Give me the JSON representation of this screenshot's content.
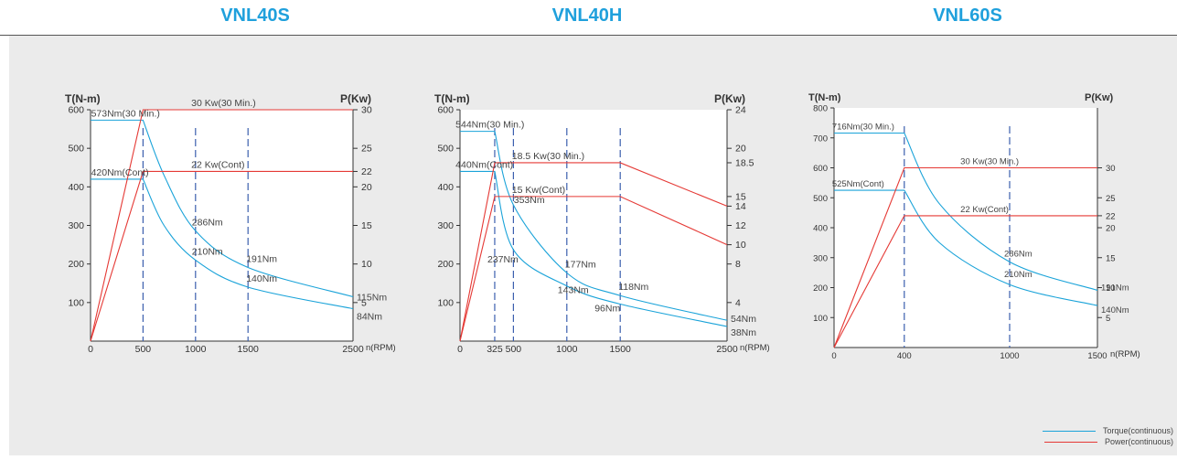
{
  "colors": {
    "torque": "#1aa3d9",
    "power": "#e53935",
    "title": "#1fa0dc"
  },
  "legend": {
    "torque_label": "Torque(continuous)",
    "power_label": "Power(continuous)"
  },
  "chart_data": [
    {
      "type": "line",
      "title": "VNL40S",
      "ylabel_left": "T(N-m)",
      "ylabel_right": "P(Kw)",
      "xlabel": "n(RPM)",
      "xlim": [
        0,
        2500
      ],
      "ylim_left": [
        0,
        600
      ],
      "ylim_right": [
        0,
        30
      ],
      "x_ticks": [
        "0",
        "500",
        "1000",
        "1500",
        "2500"
      ],
      "x_tick_values": [
        0,
        500,
        1000,
        1500,
        2500
      ],
      "y_left_ticks": [
        100,
        200,
        300,
        400,
        500,
        600
      ],
      "y_right_ticks": [
        {
          "value": 5,
          "label": "5"
        },
        {
          "value": 10,
          "label": "10"
        },
        {
          "value": 15,
          "label": "15"
        },
        {
          "value": 20,
          "label": "20"
        },
        {
          "value": 22,
          "label": "22"
        },
        {
          "value": 25,
          "label": "25"
        },
        {
          "value": 30,
          "label": "30"
        }
      ],
      "series": [
        {
          "kind": "torque",
          "x": [
            0,
            500,
            700,
            1000,
            1500,
            2500
          ],
          "y": [
            573,
            573,
            430,
            286,
            191,
            115
          ]
        },
        {
          "kind": "torque",
          "x": [
            0,
            500,
            700,
            1000,
            1500,
            2500
          ],
          "y": [
            420,
            420,
            300,
            210,
            140,
            84
          ]
        },
        {
          "kind": "power",
          "x": [
            0,
            500,
            2500
          ],
          "y": [
            0,
            30,
            30
          ]
        },
        {
          "kind": "power",
          "x": [
            0,
            500,
            2500
          ],
          "y": [
            0,
            22,
            22
          ]
        }
      ],
      "vlines": [
        500,
        1000,
        1500
      ],
      "annotations": [
        {
          "text": "573Nm(30 Min.)",
          "x": 40,
          "y": 573
        },
        {
          "text": "420Nm(Cont)",
          "x": 40,
          "y": 420
        },
        {
          "text": "30 Kw(30 Min.)",
          "x": 1700,
          "y": 600
        },
        {
          "text": "22 Kw(Cont)",
          "x": 1700,
          "y": 440
        },
        {
          "text": "286Nm",
          "x": 1000,
          "y": 286
        },
        {
          "text": "210Nm",
          "x": 1000,
          "y": 210
        },
        {
          "text": "191Nm",
          "x": 1500,
          "y": 191
        },
        {
          "text": "140Nm",
          "x": 1500,
          "y": 140
        },
        {
          "text": "115Nm",
          "x": 2500,
          "y": 115
        },
        {
          "text": "84Nm",
          "x": 2500,
          "y": 84
        }
      ]
    },
    {
      "type": "line",
      "title": "VNL40H",
      "ylabel_left": "T(N-m)",
      "ylabel_right": "P(Kw)",
      "xlabel": "n(RPM)",
      "xlim": [
        0,
        2500
      ],
      "ylim_left": [
        0,
        600
      ],
      "ylim_right": [
        0,
        24
      ],
      "x_ticks": [
        "0",
        "325",
        "500",
        "1000",
        "1500",
        "2500"
      ],
      "x_tick_values": [
        0,
        325,
        500,
        1000,
        1500,
        2500
      ],
      "y_left_ticks": [
        100,
        200,
        300,
        400,
        500,
        600
      ],
      "y_right_ticks": [
        {
          "value": 4,
          "label": "4"
        },
        {
          "value": 8,
          "label": "8"
        },
        {
          "value": 10,
          "label": "10"
        },
        {
          "value": 12,
          "label": "12"
        },
        {
          "value": 14,
          "label": "14"
        },
        {
          "value": 15,
          "label": "15"
        },
        {
          "value": 18.5,
          "label": "18.5"
        },
        {
          "value": 20,
          "label": "20"
        },
        {
          "value": 24,
          "label": "24"
        }
      ],
      "series": [
        {
          "kind": "torque",
          "x": [
            0,
            325,
            500,
            1000,
            1500,
            2500
          ],
          "y": [
            544,
            544,
            353,
            177,
            118,
            54
          ]
        },
        {
          "kind": "torque",
          "x": [
            0,
            325,
            500,
            1000,
            1500,
            2500
          ],
          "y": [
            440,
            440,
            237,
            143,
            96,
            38
          ]
        },
        {
          "kind": "power",
          "x": [
            0,
            325,
            1500,
            2500
          ],
          "y": [
            0,
            18.5,
            18.5,
            14
          ]
        },
        {
          "kind": "power",
          "x": [
            0,
            325,
            1500,
            2500
          ],
          "y": [
            0,
            15,
            15,
            10
          ]
        }
      ],
      "vlines": [
        325,
        500,
        1000,
        1500
      ],
      "annotations": [
        {
          "text": "544Nm(30 Min.)",
          "x": 10,
          "y": 544
        },
        {
          "text": "440Nm(Cont)",
          "x": 10,
          "y": 440
        },
        {
          "text": "18.5 Kw(30 Min.)",
          "x": 1000,
          "y": 462
        },
        {
          "text": "15 Kw(Cont)",
          "x": 1000,
          "y": 375
        },
        {
          "text": "353Nm",
          "x": 520,
          "y": 353
        },
        {
          "text": "237Nm",
          "x": 325,
          "y": 237
        },
        {
          "text": "177Nm",
          "x": 1000,
          "y": 177
        },
        {
          "text": "143Nm",
          "x": 1000,
          "y": 143
        },
        {
          "text": "118Nm",
          "x": 1500,
          "y": 118
        },
        {
          "text": "96Nm",
          "x": 1500,
          "y": 96
        },
        {
          "text": "54Nm",
          "x": 2500,
          "y": 54
        },
        {
          "text": "38Nm",
          "x": 2500,
          "y": 38
        }
      ]
    },
    {
      "type": "line",
      "title": "VNL60S",
      "ylabel_left": "T(N-m)",
      "ylabel_right": "P(Kw)",
      "xlabel": "n(RPM)",
      "xlim": [
        0,
        1500
      ],
      "ylim_left": [
        0,
        800
      ],
      "ylim_right": [
        0,
        40
      ],
      "x_ticks": [
        "0",
        "400",
        "1000",
        "1500"
      ],
      "x_tick_values": [
        0,
        400,
        1000,
        1500
      ],
      "y_left_ticks": [
        100,
        200,
        300,
        400,
        500,
        600,
        700,
        800
      ],
      "y_right_ticks": [
        {
          "value": 5,
          "label": "5"
        },
        {
          "value": 10,
          "label": "10"
        },
        {
          "value": 15,
          "label": "15"
        },
        {
          "value": 20,
          "label": "20"
        },
        {
          "value": 22,
          "label": "22"
        },
        {
          "value": 25,
          "label": "25"
        },
        {
          "value": 30,
          "label": "30"
        }
      ],
      "series": [
        {
          "kind": "torque",
          "x": [
            0,
            400,
            600,
            1000,
            1500
          ],
          "y": [
            716,
            716,
            480,
            286,
            191
          ]
        },
        {
          "kind": "torque",
          "x": [
            0,
            400,
            600,
            1000,
            1500
          ],
          "y": [
            525,
            525,
            350,
            210,
            140
          ]
        },
        {
          "kind": "power",
          "x": [
            0,
            400,
            1500
          ],
          "y": [
            0,
            30,
            30
          ]
        },
        {
          "kind": "power",
          "x": [
            0,
            400,
            1500
          ],
          "y": [
            0,
            22,
            22
          ]
        }
      ],
      "vlines": [
        400,
        1000
      ],
      "annotations": [
        {
          "text": "716Nm(30 Min.)",
          "x": 20,
          "y": 716
        },
        {
          "text": "525Nm(Cont)",
          "x": 20,
          "y": 525
        },
        {
          "text": "30 Kw(30 Min.)",
          "x": 980,
          "y": 600
        },
        {
          "text": "22 Kw(Cont)",
          "x": 980,
          "y": 440
        },
        {
          "text": "286Nm",
          "x": 1000,
          "y": 286
        },
        {
          "text": "210Nm",
          "x": 1000,
          "y": 210
        },
        {
          "text": "191Nm",
          "x": 1500,
          "y": 191
        },
        {
          "text": "140Nm",
          "x": 1500,
          "y": 140
        }
      ]
    }
  ]
}
